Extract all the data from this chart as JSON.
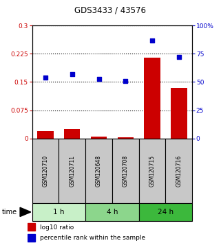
{
  "title": "GDS3433 / 43576",
  "samples": [
    "GSM120710",
    "GSM120711",
    "GSM120648",
    "GSM120708",
    "GSM120715",
    "GSM120716"
  ],
  "log10_ratio": [
    0.02,
    0.025,
    0.005,
    0.003,
    0.215,
    0.135
  ],
  "percentile_rank": [
    54,
    57,
    53,
    51,
    87,
    72
  ],
  "left_yticks": [
    0,
    0.075,
    0.15,
    0.225,
    0.3
  ],
  "left_ytick_labels": [
    "0",
    "0.075",
    "0.15",
    "0.225",
    "0.3"
  ],
  "right_yticks": [
    0,
    25,
    50,
    75,
    100
  ],
  "right_ytick_labels": [
    "0",
    "25",
    "50",
    "75",
    "100%"
  ],
  "left_ylim": [
    0,
    0.3
  ],
  "right_ylim": [
    0,
    100
  ],
  "bar_color": "#cc0000",
  "dot_color": "#0000cc",
  "legend_bar_label": "log10 ratio",
  "legend_dot_label": "percentile rank within the sample",
  "group_colors": [
    "#c8f0c8",
    "#8cd68c",
    "#3cb83c"
  ],
  "sample_bg": "#c8c8c8"
}
